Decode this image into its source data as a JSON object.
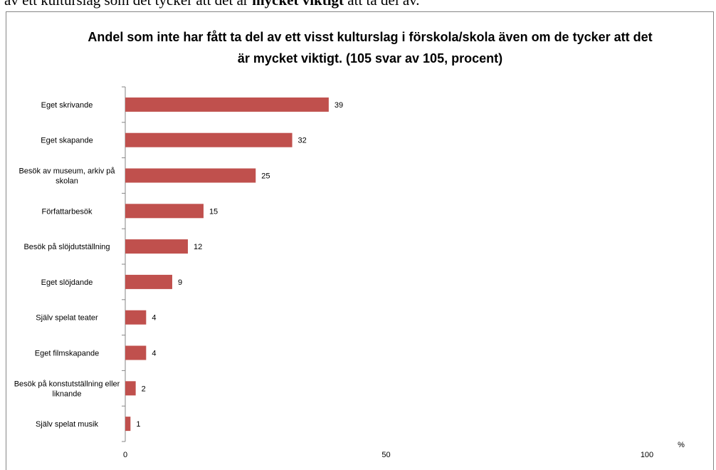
{
  "header_text": {
    "parts": [
      "av ett kulturslag som det tycker att det är ",
      "mycket viktigt",
      " att ta del av."
    ]
  },
  "chart_data": {
    "type": "bar",
    "orientation": "horizontal",
    "title": "Andel som  inte har fått ta del av ett visst kulturslag i förskola/skola även om de tycker att det är mycket viktigt. (105 svar av 105, procent)",
    "categories": [
      "Eget skrivande",
      "Eget skapande",
      "Besök av museum, arkiv på skolan",
      "Författarbesök",
      "Besök på slöjdutställning",
      "Eget slöjdande",
      "Själv spelat teater",
      "Eget filmskapande",
      "Besök på konstutställning eller liknande",
      "Själv spelat musik"
    ],
    "values": [
      39,
      32,
      25,
      15,
      12,
      9,
      4,
      4,
      2,
      1
    ],
    "color": "#c0504d",
    "xlim": [
      0,
      100
    ],
    "xticks": [
      0,
      50,
      100
    ],
    "xlabel": "%",
    "grid": false
  }
}
